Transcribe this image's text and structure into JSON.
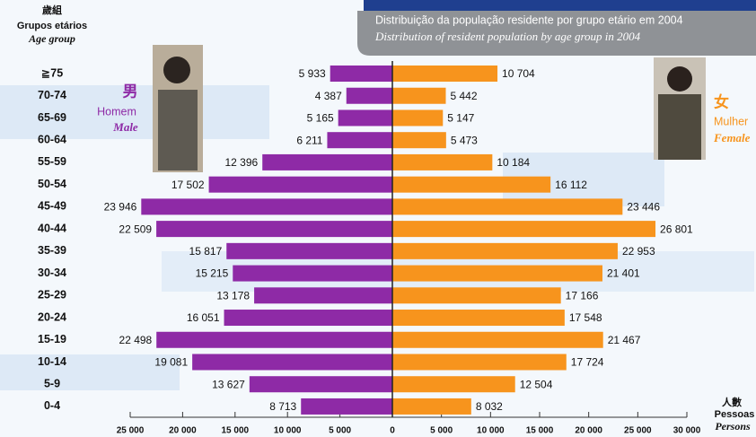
{
  "chart_data": {
    "type": "pyramid",
    "subtitle": "Distribuição da população residente por grupo etário em 2004",
    "subtitle_en": "Distribution of resident population by age group in 2004",
    "y_label": [
      "歲組",
      "Grupos etários",
      "Age group"
    ],
    "x_label": [
      "人數",
      "Pessoas",
      "Persons"
    ],
    "categories": [
      "≧75",
      "70-74",
      "65-69",
      "60-64",
      "55-59",
      "50-54",
      "45-49",
      "40-44",
      "35-39",
      "30-34",
      "25-29",
      "20-24",
      "15-19",
      "10-14",
      "5-9",
      "0-4"
    ],
    "series": [
      {
        "name": "Male",
        "name_zh": "男",
        "name_pt": "Homem",
        "color": "#8e2aa6",
        "side": "left",
        "values": [
          5933,
          4387,
          5165,
          6211,
          12396,
          17502,
          23946,
          22509,
          15817,
          15215,
          13178,
          16051,
          22498,
          19081,
          13627,
          8713
        ],
        "value_labels": [
          "5 933",
          "4 387",
          "5 165",
          "6 211",
          "12 396",
          "17 502",
          "23 946",
          "22 509",
          "15 817",
          "15 215",
          "13 178",
          "16 051",
          "22 498",
          "19 081",
          "13 627",
          "8 713"
        ]
      },
      {
        "name": "Female",
        "name_zh": "女",
        "name_pt": "Mulher",
        "color": "#f7941d",
        "side": "right",
        "values": [
          10704,
          5442,
          5147,
          5473,
          10184,
          16112,
          23446,
          26801,
          22953,
          21401,
          17166,
          17548,
          21467,
          17724,
          12504,
          8032
        ],
        "value_labels": [
          "10 704",
          "5 442",
          "5 147",
          "5 473",
          "10 184",
          "16 112",
          "23 446",
          "26 801",
          "22 953",
          "21 401",
          "17 166",
          "17 548",
          "21 467",
          "17 724",
          "12 504",
          "8 032"
        ]
      }
    ],
    "left_axis": {
      "lim": [
        0,
        25000
      ],
      "ticks": [
        {
          "value": 25000,
          "label": "25 000"
        },
        {
          "value": 20000,
          "label": "20 000"
        },
        {
          "value": 15000,
          "label": "15 000"
        },
        {
          "value": 10000,
          "label": "10 000"
        },
        {
          "value": 5000,
          "label": "5 000"
        }
      ]
    },
    "right_axis": {
      "lim": [
        0,
        30000
      ],
      "ticks": [
        0,
        {
          "value": 5000,
          "label": "5 000"
        },
        {
          "value": 10000,
          "label": "10 000"
        },
        {
          "value": 15000,
          "label": "15 000"
        },
        {
          "value": 20000,
          "label": "20 000"
        },
        {
          "value": 25000,
          "label": "25 000"
        },
        {
          "value": 30000,
          "label": "30 000"
        }
      ]
    }
  }
}
